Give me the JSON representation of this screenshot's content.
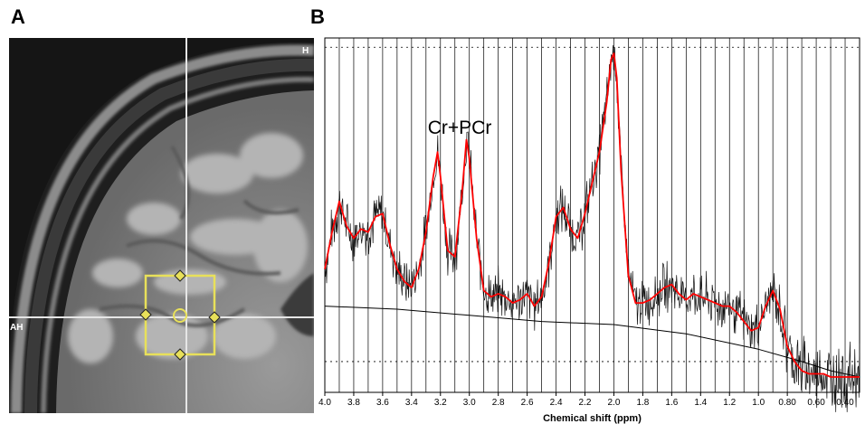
{
  "panel_a": {
    "label": "A",
    "orientation_top_right": "H",
    "orientation_left": "AH"
  },
  "panel_b": {
    "label": "B"
  },
  "chart_data": {
    "type": "line",
    "title": "",
    "xlabel": "Chemical shift (ppm)",
    "ylabel": "",
    "xlim": [
      4.0,
      0.3
    ],
    "x_reversed": true,
    "x_ticks": [
      "4.0",
      "3.8",
      "3.6",
      "3.4",
      "3.2",
      "3.0",
      "2.8",
      "2.6",
      "2.4",
      "2.2",
      "2.0",
      "1.8",
      "1.6",
      "1.4",
      "1.2",
      "1.0",
      "0.80",
      "0.60",
      "0.40"
    ],
    "grid": {
      "vertical": true,
      "horizontal_dashed": true
    },
    "annotations": [
      {
        "text": "Cr+PCr",
        "x": 3.0
      }
    ],
    "series": [
      {
        "color": "#ff0000",
        "style": "fitted spectrum",
        "x": [
          4.0,
          3.95,
          3.9,
          3.85,
          3.8,
          3.75,
          3.7,
          3.65,
          3.6,
          3.55,
          3.5,
          3.45,
          3.4,
          3.35,
          3.3,
          3.25,
          3.22,
          3.2,
          3.15,
          3.1,
          3.05,
          3.02,
          3.0,
          2.95,
          2.9,
          2.85,
          2.8,
          2.75,
          2.7,
          2.65,
          2.6,
          2.55,
          2.5,
          2.45,
          2.4,
          2.35,
          2.3,
          2.25,
          2.2,
          2.15,
          2.1,
          2.05,
          2.02,
          2.0,
          1.98,
          1.95,
          1.9,
          1.85,
          1.8,
          1.75,
          1.7,
          1.65,
          1.6,
          1.55,
          1.5,
          1.45,
          1.4,
          1.35,
          1.3,
          1.25,
          1.2,
          1.15,
          1.1,
          1.05,
          1.0,
          0.95,
          0.9,
          0.85,
          0.8,
          0.75,
          0.7,
          0.65,
          0.6,
          0.55,
          0.5,
          0.45,
          0.4,
          0.35,
          0.3
        ],
        "y": [
          0.3,
          0.42,
          0.52,
          0.44,
          0.4,
          0.43,
          0.42,
          0.47,
          0.48,
          0.38,
          0.3,
          0.26,
          0.24,
          0.3,
          0.42,
          0.6,
          0.68,
          0.6,
          0.36,
          0.34,
          0.55,
          0.72,
          0.66,
          0.4,
          0.23,
          0.21,
          0.22,
          0.21,
          0.19,
          0.2,
          0.22,
          0.18,
          0.21,
          0.32,
          0.47,
          0.5,
          0.43,
          0.4,
          0.48,
          0.58,
          0.68,
          0.84,
          0.98,
          1.0,
          0.92,
          0.62,
          0.28,
          0.19,
          0.19,
          0.2,
          0.22,
          0.24,
          0.25,
          0.22,
          0.2,
          0.22,
          0.21,
          0.2,
          0.19,
          0.18,
          0.18,
          0.16,
          0.13,
          0.1,
          0.11,
          0.18,
          0.23,
          0.17,
          0.05,
          0.0,
          -0.03,
          -0.04,
          -0.04,
          -0.04,
          -0.05,
          -0.05,
          -0.05,
          -0.05,
          -0.05
        ]
      },
      {
        "color": "#000000",
        "style": "baseline",
        "x": [
          4.0,
          3.5,
          3.0,
          2.5,
          2.0,
          1.5,
          1.0,
          0.7,
          0.5,
          0.3
        ],
        "y": [
          0.18,
          0.17,
          0.15,
          0.13,
          0.12,
          0.09,
          0.04,
          0.0,
          -0.03,
          -0.05
        ]
      }
    ]
  }
}
